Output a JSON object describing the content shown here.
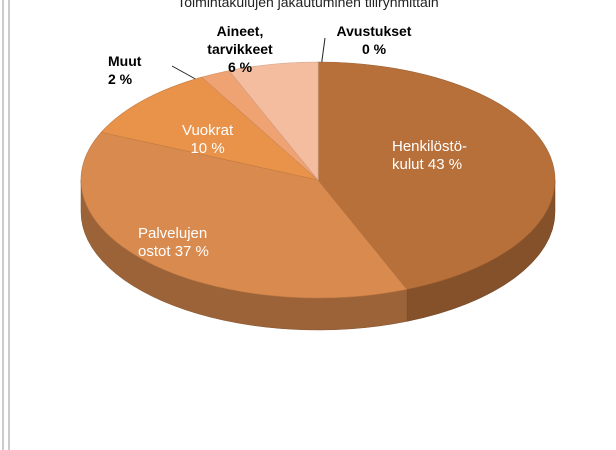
{
  "chart_data": {
    "type": "pie3d",
    "title": "Toimintakulujen jakautuminen tiliryhmittäin",
    "categories": [
      "Henkilöstö-\nkulut",
      "Palvelujen\nostot",
      "Vuokrat",
      "Muut",
      "Aineet,\ntarvikkeet",
      "Avustukset"
    ],
    "values": [
      43,
      37,
      10,
      2,
      6,
      0
    ],
    "value_labels": [
      "43 %",
      "37 %",
      "10 %",
      "2 %",
      "6 %",
      "0 %"
    ],
    "colors": [
      "#b8703a",
      "#d98a4e",
      "#e8924a",
      "#f0a372",
      "#f4bda0",
      "#f8dccc"
    ]
  }
}
